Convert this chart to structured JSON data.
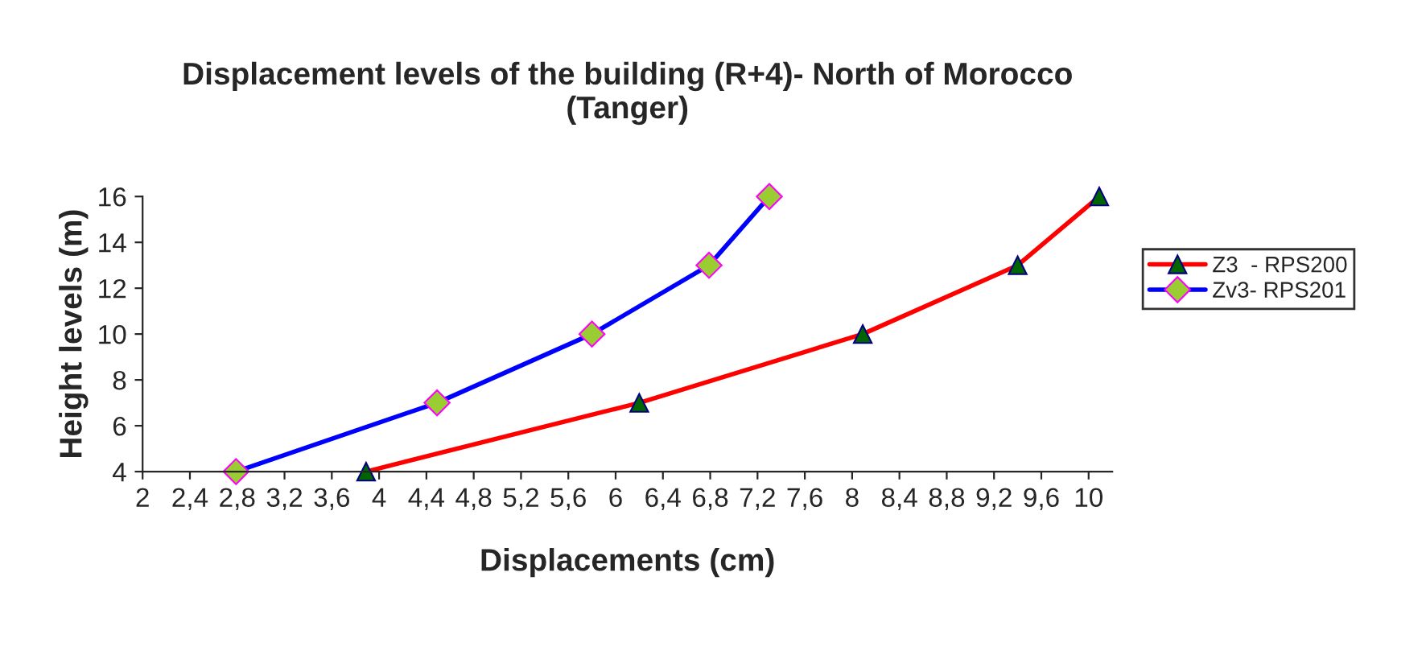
{
  "chart_data": {
    "type": "line",
    "title": "Displacement levels of the building (R+4)- North of Morocco\n(Tanger)",
    "xlabel": "Displacements (cm)",
    "ylabel": "Height levels (m)",
    "series": [
      {
        "name": "Z3  - RPS200",
        "color": "#ff0000",
        "marker": "triangle",
        "x": [
          3.89,
          6.2,
          8.09,
          9.4,
          10.09
        ],
        "values": [
          4,
          7,
          10,
          13,
          16
        ]
      },
      {
        "name": "Zv3- RPS201",
        "color": "#0000ff",
        "marker": "diamond",
        "x": [
          2.79,
          4.49,
          5.8,
          6.79,
          7.3
        ],
        "values": [
          4,
          7,
          10,
          13,
          16
        ]
      }
    ],
    "xlim": [
      2,
      10.2
    ],
    "xticks": [
      2,
      {
        "value": 2.4,
        "label": "2,4"
      },
      {
        "value": 2.8,
        "label": "2,8"
      },
      {
        "value": 3.2,
        "label": "3,2"
      },
      {
        "value": 3.6,
        "label": "3,6"
      },
      4,
      {
        "value": 4.4,
        "label": "4,4"
      },
      {
        "value": 4.8,
        "label": "4,8"
      },
      {
        "value": 5.2,
        "label": "5,2"
      },
      {
        "value": 5.6,
        "label": "5,6"
      },
      6,
      {
        "value": 6.4,
        "label": "6,4"
      },
      {
        "value": 6.8,
        "label": "6,8"
      },
      {
        "value": 7.2,
        "label": "7,2"
      },
      {
        "value": 7.6,
        "label": "7,6"
      },
      8,
      {
        "value": 8.4,
        "label": "8,4"
      },
      {
        "value": 8.8,
        "label": "8,8"
      },
      {
        "value": 9.2,
        "label": "9,2"
      },
      {
        "value": 9.6,
        "label": "9,6"
      },
      10
    ],
    "ylim": [
      4,
      16
    ],
    "yticks": [
      4,
      6,
      8,
      10,
      12,
      14,
      16
    ],
    "grid": false,
    "legend": "right",
    "line_style": "solid"
  }
}
